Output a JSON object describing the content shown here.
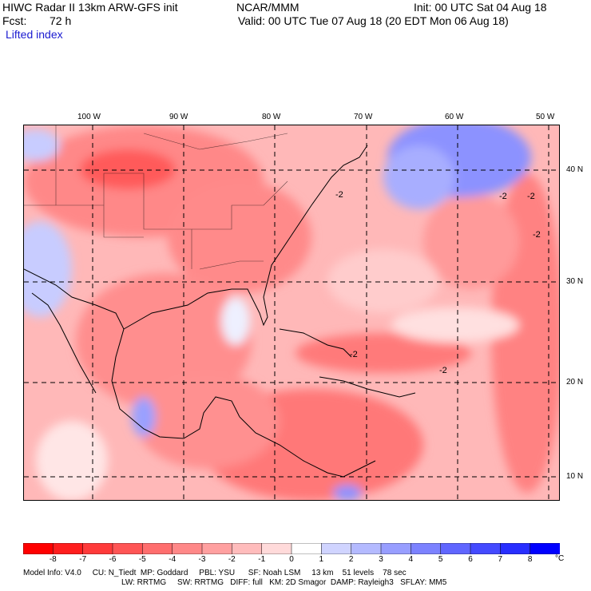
{
  "header": {
    "title": "HIWC Radar II 13km ARW-GFS init",
    "org": "NCAR/MMM",
    "init": "Init: 00 UTC Sat 04 Aug 18",
    "fcst_label": "Fcst:",
    "fcst_value": "72 h",
    "valid": "Valid: 00 UTC Tue 07 Aug 18 (20 EDT Mon 06 Aug 18)",
    "field": "Lifted index"
  },
  "map": {
    "lon_labels": [
      "100 W",
      "90 W",
      "80 W",
      "70 W",
      "60 W",
      "50 W"
    ],
    "lat_labels": [
      "40 N",
      "30 N",
      "20 N",
      "10 N"
    ],
    "contour_label": "-2"
  },
  "colorbar": {
    "values": [
      "-8",
      "-7",
      "-6",
      "-5",
      "-4",
      "-3",
      "-2",
      "-1",
      "0",
      "1",
      "2",
      "3",
      "4",
      "5",
      "6",
      "7",
      "8"
    ],
    "unit": "°C",
    "colors": [
      "#ff0000",
      "#ff1e1e",
      "#ff3a3a",
      "#ff5555",
      "#ff6e6e",
      "#ff8888",
      "#ffa0a0",
      "#ffbcbc",
      "#ffdada",
      "#ffffff",
      "#d0d4ff",
      "#b4baff",
      "#989eff",
      "#7c82ff",
      "#6066ff",
      "#444aff",
      "#282eff",
      "#0000ff"
    ]
  },
  "footer": {
    "line1": "Model Info: V4.0     CU: N_Tiedt  MP: Goddard     PBL: YSU      SF: Noah LSM     13 km    51 levels    78 sec",
    "line2": "LW: RRTMG     SW: RRTMG   DIFF: full   KM: 2D Smagor  DAMP: Rayleigh3   SFLAY: MM5"
  }
}
